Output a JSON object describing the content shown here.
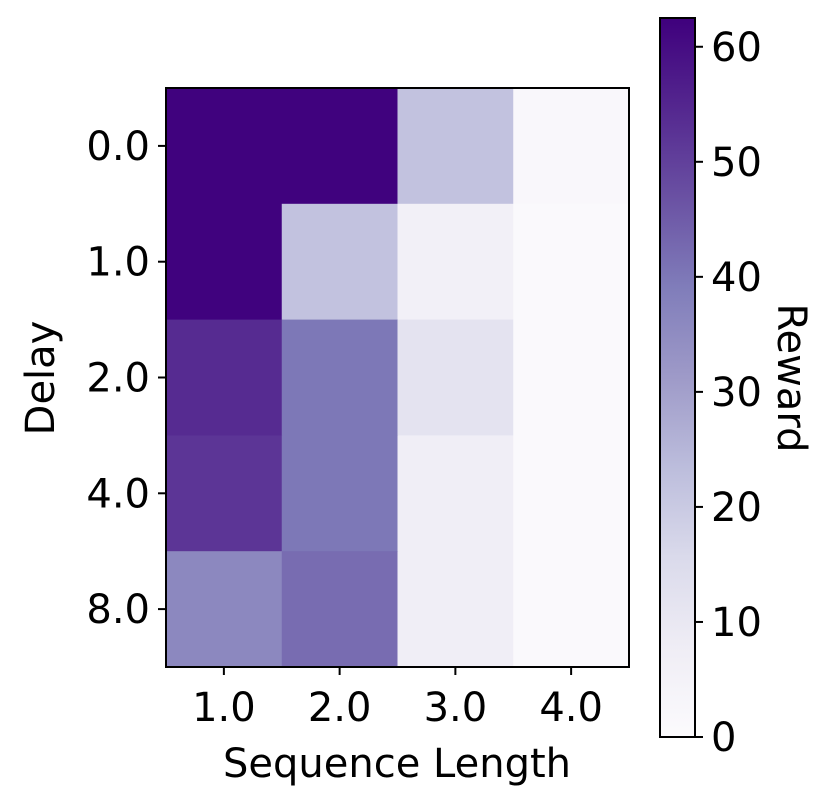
{
  "chart_data": {
    "type": "heatmap",
    "title": "",
    "xlabel": "Sequence Length",
    "ylabel": "Delay",
    "x_categories": [
      "1.0",
      "2.0",
      "3.0",
      "4.0"
    ],
    "y_categories": [
      "0.0",
      "1.0",
      "2.0",
      "4.0",
      "8.0"
    ],
    "values": [
      [
        62,
        62,
        22,
        2
      ],
      [
        62,
        22,
        6,
        1
      ],
      [
        54,
        40,
        12,
        1
      ],
      [
        52,
        40,
        7,
        1
      ],
      [
        36,
        42,
        7,
        1
      ]
    ],
    "colorbar": {
      "label": "Reward",
      "vmin": 0,
      "vmax": 62.5,
      "ticks": [
        "0",
        "10",
        "20",
        "30",
        "40",
        "50",
        "60"
      ],
      "tick_values": [
        0,
        10,
        20,
        30,
        40,
        50,
        60
      ]
    },
    "colormap": "Purples",
    "grid": false
  }
}
